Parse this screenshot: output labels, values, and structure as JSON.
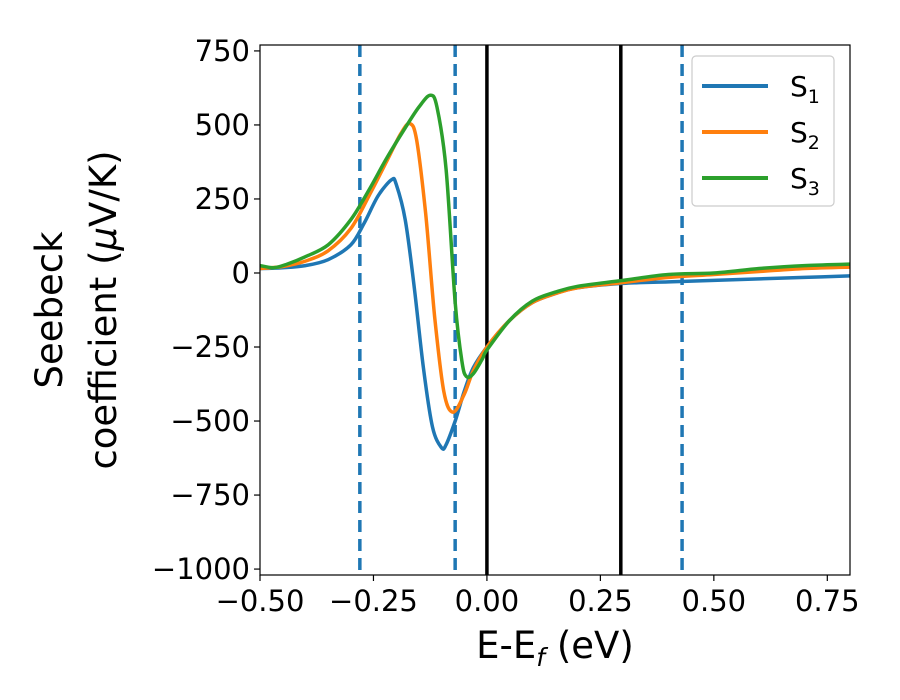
{
  "chart_data": {
    "type": "line",
    "xlabel": {
      "main": "E-E",
      "sub": "f",
      "suffix": " (eV)"
    },
    "ylabel": {
      "line1": "Seebeck",
      "line2_pre": "coefficient  (",
      "line2_mu": "μ",
      "line2_post": "V/K)"
    },
    "xlim": [
      -0.5,
      0.8
    ],
    "ylim": [
      -1020,
      770
    ],
    "xticks": [
      -0.5,
      -0.25,
      0.0,
      0.25,
      0.5,
      0.75
    ],
    "xtick_labels": [
      "−0.50",
      "−0.25",
      "0.00",
      "0.25",
      "0.50",
      "0.75"
    ],
    "yticks": [
      750,
      500,
      250,
      0,
      -250,
      -500,
      -750,
      -1000
    ],
    "ytick_labels": [
      "750",
      "500",
      "250",
      "0",
      "−250",
      "−500",
      "−750",
      "−1000"
    ],
    "grid": false,
    "legend": {
      "position": "top-right"
    },
    "vlines": [
      {
        "x": -0.28,
        "style": "dashed",
        "color": "#1f77b4"
      },
      {
        "x": -0.07,
        "style": "dashed",
        "color": "#1f77b4"
      },
      {
        "x": 0.0,
        "style": "solid",
        "color": "#000000"
      },
      {
        "x": 0.295,
        "style": "solid",
        "color": "#000000"
      },
      {
        "x": 0.43,
        "style": "dashed",
        "color": "#1f77b4"
      }
    ],
    "series": [
      {
        "name": "S",
        "sub": "1",
        "color": "#1f77b4",
        "points": [
          [
            -0.5,
            15
          ],
          [
            -0.45,
            18
          ],
          [
            -0.4,
            25
          ],
          [
            -0.35,
            45
          ],
          [
            -0.3,
            95
          ],
          [
            -0.27,
            170
          ],
          [
            -0.24,
            260
          ],
          [
            -0.21,
            315
          ],
          [
            -0.2,
            300
          ],
          [
            -0.18,
            180
          ],
          [
            -0.16,
            -50
          ],
          [
            -0.14,
            -320
          ],
          [
            -0.12,
            -520
          ],
          [
            -0.1,
            -590
          ],
          [
            -0.09,
            -580
          ],
          [
            -0.07,
            -500
          ],
          [
            -0.05,
            -400
          ],
          [
            -0.03,
            -320
          ],
          [
            0.0,
            -250
          ],
          [
            0.05,
            -160
          ],
          [
            0.1,
            -100
          ],
          [
            0.15,
            -70
          ],
          [
            0.2,
            -50
          ],
          [
            0.3,
            -35
          ],
          [
            0.4,
            -30
          ],
          [
            0.5,
            -25
          ],
          [
            0.6,
            -20
          ],
          [
            0.7,
            -15
          ],
          [
            0.8,
            -10
          ]
        ]
      },
      {
        "name": "S",
        "sub": "2",
        "color": "#ff7f0e",
        "points": [
          [
            -0.5,
            15
          ],
          [
            -0.45,
            22
          ],
          [
            -0.4,
            40
          ],
          [
            -0.35,
            75
          ],
          [
            -0.3,
            150
          ],
          [
            -0.26,
            260
          ],
          [
            -0.22,
            380
          ],
          [
            -0.19,
            470
          ],
          [
            -0.17,
            505
          ],
          [
            -0.155,
            450
          ],
          [
            -0.135,
            200
          ],
          [
            -0.115,
            -150
          ],
          [
            -0.095,
            -400
          ],
          [
            -0.075,
            -470
          ],
          [
            -0.05,
            -410
          ],
          [
            -0.03,
            -330
          ],
          [
            0.0,
            -250
          ],
          [
            0.05,
            -160
          ],
          [
            0.1,
            -100
          ],
          [
            0.15,
            -70
          ],
          [
            0.2,
            -50
          ],
          [
            0.3,
            -32
          ],
          [
            0.4,
            -15
          ],
          [
            0.5,
            -5
          ],
          [
            0.6,
            5
          ],
          [
            0.7,
            15
          ],
          [
            0.8,
            20
          ]
        ]
      },
      {
        "name": "S",
        "sub": "3",
        "color": "#2ca02c",
        "points": [
          [
            -0.5,
            25
          ],
          [
            -0.47,
            18
          ],
          [
            -0.44,
            30
          ],
          [
            -0.4,
            55
          ],
          [
            -0.35,
            95
          ],
          [
            -0.3,
            180
          ],
          [
            -0.26,
            280
          ],
          [
            -0.22,
            390
          ],
          [
            -0.18,
            490
          ],
          [
            -0.15,
            560
          ],
          [
            -0.125,
            600
          ],
          [
            -0.11,
            560
          ],
          [
            -0.09,
            350
          ],
          [
            -0.07,
            -100
          ],
          [
            -0.055,
            -300
          ],
          [
            -0.045,
            -350
          ],
          [
            -0.03,
            -340
          ],
          [
            -0.01,
            -290
          ],
          [
            0.0,
            -260
          ],
          [
            0.05,
            -160
          ],
          [
            0.1,
            -95
          ],
          [
            0.15,
            -65
          ],
          [
            0.2,
            -45
          ],
          [
            0.3,
            -25
          ],
          [
            0.4,
            -5
          ],
          [
            0.5,
            0
          ],
          [
            0.6,
            15
          ],
          [
            0.7,
            25
          ],
          [
            0.8,
            30
          ]
        ]
      }
    ]
  }
}
